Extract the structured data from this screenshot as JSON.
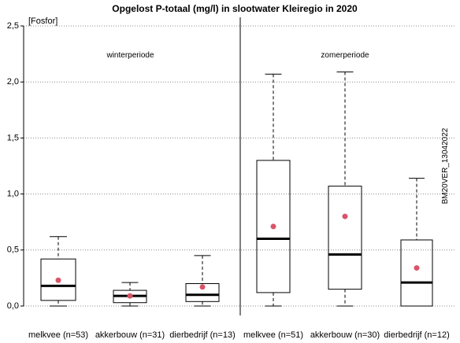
{
  "chart_data": {
    "type": "boxplot",
    "title": "Opgelost P-totaal (mg/l) in slootwater Kleiregio in 2020",
    "parameter_label": "[Fosfor]",
    "side_label": "BM20VER_13042022",
    "ylim": [
      0,
      2.5
    ],
    "yticks": [
      {
        "value": 0,
        "label": "0,0"
      },
      {
        "value": 0.5,
        "label": "0,5"
      },
      {
        "value": 1.0,
        "label": "1,0"
      },
      {
        "value": 1.5,
        "label": "1,5"
      },
      {
        "value": 2.0,
        "label": "2,0"
      },
      {
        "value": 2.5,
        "label": "2,5"
      }
    ],
    "grid": "horizontal-dotted",
    "periods": [
      {
        "label": "winterperiode",
        "groups": [
          0,
          1,
          2
        ]
      },
      {
        "label": "zomerperiode",
        "groups": [
          3,
          4,
          5
        ]
      }
    ],
    "groups": [
      {
        "label": "melkvee (n=53)",
        "whisker_low": 0.0,
        "q1": 0.05,
        "median": 0.18,
        "q3": 0.42,
        "whisker_high": 0.62,
        "mean": 0.23
      },
      {
        "label": "akkerbouw (n=31)",
        "whisker_low": 0.0,
        "q1": 0.03,
        "median": 0.09,
        "q3": 0.14,
        "whisker_high": 0.21,
        "mean": 0.09
      },
      {
        "label": "dierbedrijf (n=13)",
        "whisker_low": 0.0,
        "q1": 0.04,
        "median": 0.1,
        "q3": 0.2,
        "whisker_high": 0.45,
        "mean": 0.17
      },
      {
        "label": "melkvee (n=51)",
        "whisker_low": 0.0,
        "q1": 0.12,
        "median": 0.6,
        "q3": 1.3,
        "whisker_high": 2.07,
        "mean": 0.71
      },
      {
        "label": "akkerbouw (n=30)",
        "whisker_low": 0.0,
        "q1": 0.15,
        "median": 0.46,
        "q3": 1.07,
        "whisker_high": 2.09,
        "mean": 0.8
      },
      {
        "label": "dierbedrijf (n=12)",
        "whisker_low": 0.0,
        "q1": 0.0,
        "median": 0.21,
        "q3": 0.59,
        "whisker_high": 1.14,
        "mean": 0.34
      }
    ],
    "colors": {
      "box": "#000000",
      "mean_marker": "#d9546a",
      "grid": "#888888"
    }
  }
}
